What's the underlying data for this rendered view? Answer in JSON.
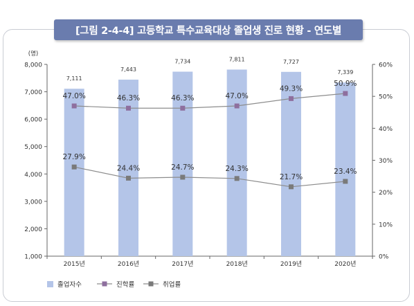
{
  "title": "[그림 2-4-4] 고등학교 특수교육대상 졸업생 진로 현황 - 연도별",
  "chart_data": {
    "type": "bar",
    "categories": [
      "2015년",
      "2016년",
      "2017년",
      "2018년",
      "2019년",
      "2020년"
    ],
    "left_axis": {
      "unit": "(명)",
      "ylim": [
        1000,
        8000
      ],
      "ticks": [
        "1,000",
        "2,000",
        "3,000",
        "4,000",
        "5,000",
        "6,000",
        "7,000",
        "8,000"
      ]
    },
    "right_axis": {
      "ylim": [
        0,
        60
      ],
      "ticks": [
        "0%",
        "10%",
        "20%",
        "30%",
        "40%",
        "50%",
        "60%"
      ]
    },
    "series": [
      {
        "name": "졸업자수",
        "kind": "bar",
        "axis": "left",
        "color": "#b4c5e8",
        "values": [
          7111,
          7443,
          7734,
          7811,
          7727,
          7339
        ],
        "labels": [
          "7,111",
          "7,443",
          "7,734",
          "7,811",
          "7,727",
          "7,339"
        ]
      },
      {
        "name": "진학률",
        "kind": "line",
        "axis": "right",
        "color": "#8e6f9e",
        "values": [
          47.0,
          46.3,
          46.3,
          47.0,
          49.3,
          50.9
        ],
        "labels": [
          "47.0%",
          "46.3%",
          "46.3%",
          "47.0%",
          "49.3%",
          "50.9%"
        ]
      },
      {
        "name": "취업률",
        "kind": "line",
        "axis": "right",
        "color": "#7a7a7a",
        "values": [
          27.9,
          24.4,
          24.7,
          24.3,
          21.7,
          23.4
        ],
        "labels": [
          "27.9%",
          "24.4%",
          "24.7%",
          "24.3%",
          "21.7%",
          "23.4%"
        ]
      }
    ],
    "legend": "bottom-left",
    "grid": false
  }
}
